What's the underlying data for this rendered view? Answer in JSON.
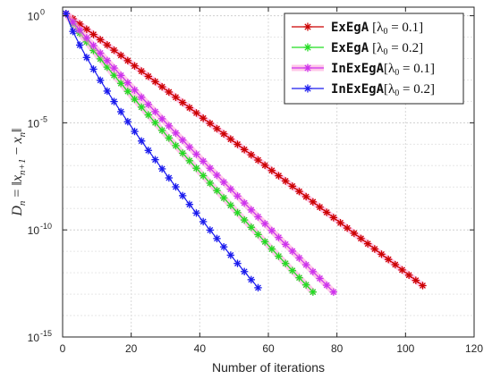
{
  "chart_data": {
    "type": "line",
    "title": "",
    "xlabel": "Number of iterations",
    "ylabel": "D_n = ||x_{n+1} - x_n||",
    "ylabel_parts": {
      "lhs": "D",
      "lhs_sub": "n",
      "eq": " = ‖",
      "x1": "x",
      "x1_sub": "n+1",
      "minus": " − ",
      "x2": "x",
      "x2_sub": "n",
      "close": "‖"
    },
    "xlim": [
      0,
      120
    ],
    "ylim_log10": [
      -15,
      0.4
    ],
    "yscale": "log",
    "grid": true,
    "xticks": [
      0,
      20,
      40,
      60,
      80,
      100,
      120
    ],
    "xtick_labels": [
      "0",
      "20",
      "40",
      "60",
      "80",
      "100",
      "120"
    ],
    "yticks": [
      0,
      -5,
      -10,
      -15
    ],
    "ytick_labels": [
      {
        "base": "10",
        "exp": "0"
      },
      {
        "base": "10",
        "exp": "-5"
      },
      {
        "base": "10",
        "exp": "-10"
      },
      {
        "base": "10",
        "exp": "-15"
      }
    ],
    "legend_position": "top-right",
    "series": [
      {
        "name": "ExEgA [λ0 = 0.1]",
        "label_mono": "ExEgA",
        "label_math": "[λ",
        "label_sub": "0",
        "label_rest": " = 0.1]",
        "color": "#cc0000",
        "highlight": "#ff9ad5",
        "marker": "asterisk",
        "y_start_log10": 0.1,
        "y_end_log10": -12.6,
        "x_start": 1,
        "x_end": 105,
        "x_step": 2,
        "curve_power": 1.0
      },
      {
        "name": "ExEgA [λ0 = 0.2]",
        "label_mono": "ExEgA",
        "label_math": "[λ",
        "label_sub": "0",
        "label_rest": " = 0.2]",
        "color": "#22dd22",
        "highlight": "#ff9ad5",
        "marker": "asterisk",
        "y_start_log10": 0.1,
        "y_end_log10": -12.9,
        "x_start": 1,
        "x_end": 73,
        "x_step": 2,
        "curve_power": 0.92
      },
      {
        "name": "InExEgA[λ0 = 0.1]",
        "label_mono": "InExEgA",
        "label_math": "[λ",
        "label_sub": "0",
        "label_rest": " = 0.1]",
        "color": "#cc33ee",
        "highlight": "#ff9ad5",
        "marker": "asterisk",
        "y_start_log10": 0.1,
        "y_end_log10": -12.9,
        "x_start": 1,
        "x_end": 79,
        "x_step": 2,
        "curve_power": 0.95
      },
      {
        "name": "InExEgA[λ0 = 0.2]",
        "label_mono": "InExEgA",
        "label_math": "[λ",
        "label_sub": "0",
        "label_rest": " = 0.2]",
        "color": "#1a1aee",
        "highlight": "none",
        "marker": "asterisk",
        "y_start_log10": 0.1,
        "y_end_log10": -12.7,
        "x_start": 1,
        "x_end": 57,
        "x_step": 2,
        "curve_power": 0.82
      }
    ]
  }
}
